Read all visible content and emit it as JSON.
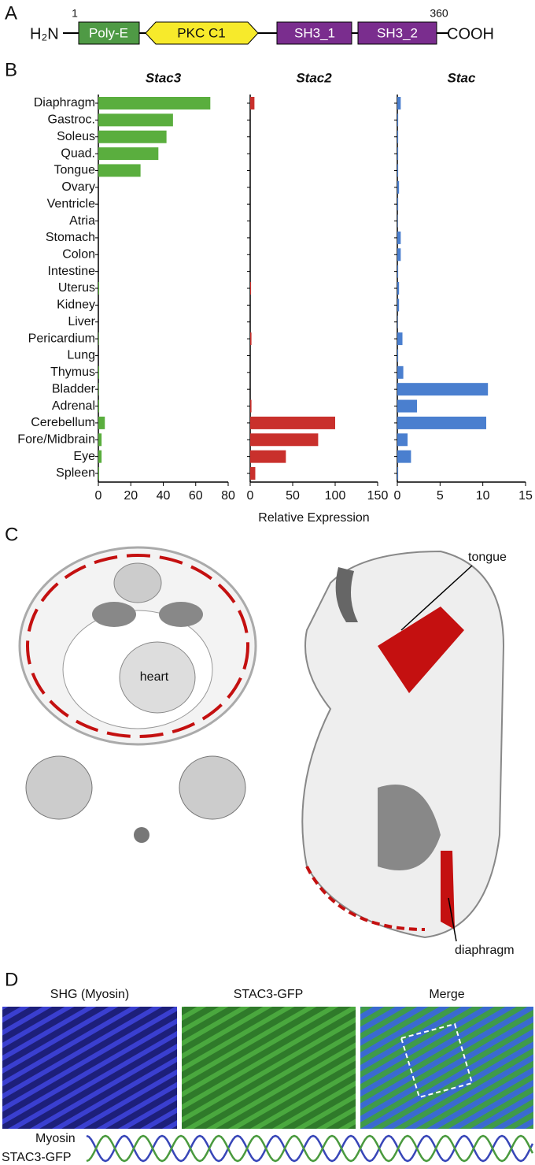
{
  "panel_labels": [
    "A",
    "B",
    "C",
    "D"
  ],
  "panel_a": {
    "n_term": "H₂N",
    "c_term": "COOH",
    "start": 1,
    "end": 360,
    "domains": [
      "Poly-E",
      "PKC C1",
      "SH3_1",
      "SH3_2"
    ]
  },
  "chart_data": [
    {
      "type": "bar",
      "title": "Stac3",
      "color": "#5aae3e",
      "xlim": [
        0,
        80
      ],
      "xticks": [
        0,
        20,
        40,
        60,
        80
      ],
      "categories": [
        "Diaphragm",
        "Gastroc.",
        "Soleus",
        "Quad.",
        "Tongue",
        "Ovary",
        "Ventricle",
        "Atria",
        "Stomach",
        "Colon",
        "Intestine",
        "Uterus",
        "Kidney",
        "Liver",
        "Pericardium",
        "Lung",
        "Thymus",
        "Bladder",
        "Adrenal",
        "Cerebellum",
        "Fore/Midbrain",
        "Eye",
        "Spleen"
      ],
      "values": [
        69,
        46,
        42,
        37,
        26,
        0,
        0,
        0,
        0,
        0,
        0,
        0.5,
        0,
        0,
        0.3,
        0,
        0.5,
        0.3,
        0.5,
        4,
        2,
        2,
        0.5
      ]
    },
    {
      "type": "bar",
      "title": "Stac2",
      "color": "#c9302c",
      "xlim": [
        0,
        150
      ],
      "xticks": [
        0,
        50,
        100,
        150
      ],
      "xlabel": "Relative Expression",
      "values": [
        5,
        0,
        0,
        0,
        0,
        0,
        0,
        0,
        0,
        0,
        0,
        1,
        0,
        0,
        1.5,
        0,
        0,
        0,
        1.5,
        100,
        80,
        42,
        6
      ]
    },
    {
      "type": "bar",
      "title": "Stac",
      "color": "#4a7fcf",
      "xlim": [
        0,
        15
      ],
      "xticks": [
        0,
        5,
        10,
        15
      ],
      "values": [
        0.4,
        0.1,
        0.1,
        0.1,
        0.1,
        0.2,
        0.1,
        0.05,
        0.4,
        0.4,
        0.1,
        0.2,
        0.2,
        0.05,
        0.6,
        0.1,
        0.7,
        10.6,
        2.3,
        10.4,
        1.2,
        1.6,
        0.1
      ]
    }
  ],
  "panel_c": {
    "labels": [
      "heart",
      "tongue",
      "diaphragm"
    ]
  },
  "panel_d": {
    "image_titles": [
      "SHG (Myosin)",
      "STAC3-GFP",
      "Merge"
    ],
    "trace_labels": [
      "Myosin",
      "STAC3-GFP"
    ]
  }
}
